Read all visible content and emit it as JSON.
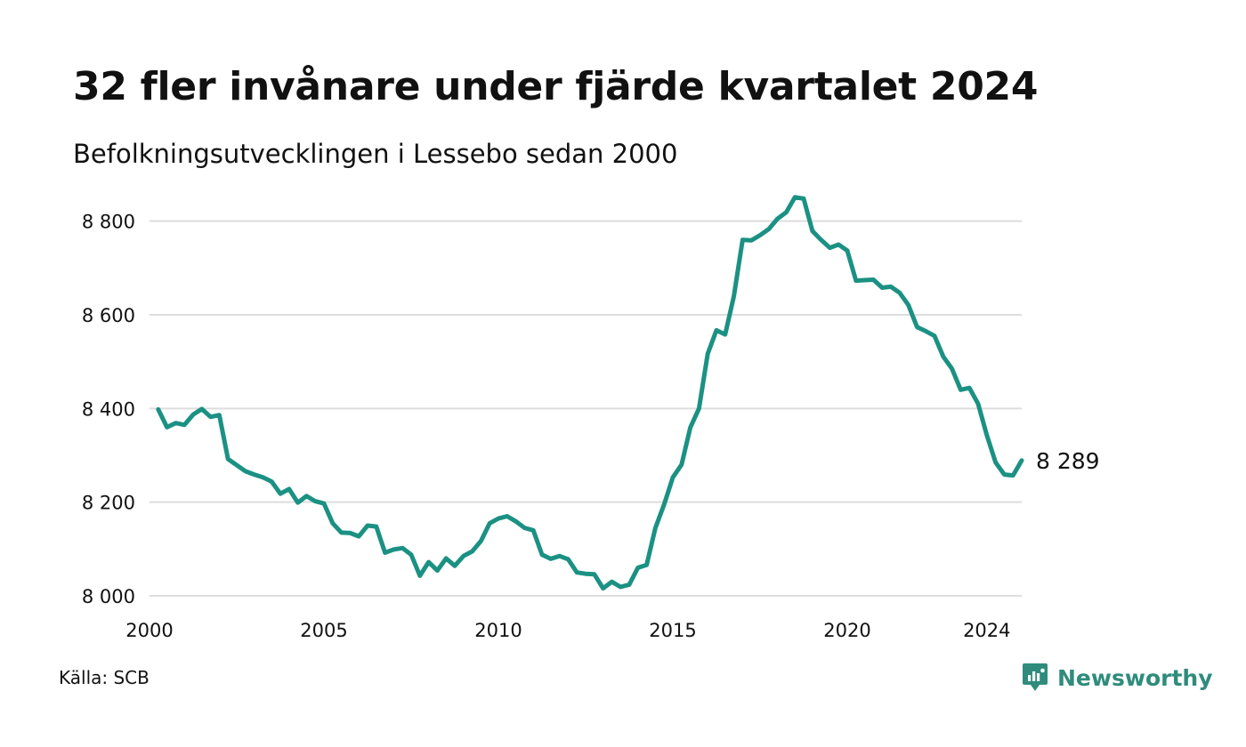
{
  "title": "32 fler invånare under fjärde kvartalet 2024",
  "subtitle": "Befolkningsutvecklingen i Lessebo sedan 2000",
  "source": "Källa: SCB",
  "logo_text": "Newsworthy",
  "colors": {
    "line": "#1b9183",
    "grid": "#dddddd",
    "logo": "#2f8c7d"
  },
  "icons": {
    "logo": "newsworthy-logo-icon"
  },
  "chart_data": {
    "type": "line",
    "title": "32 fler invånare under fjärde kvartalet 2024",
    "subtitle": "Befolkningsutvecklingen i Lessebo sedan 2000",
    "xlabel": "",
    "ylabel": "",
    "xlim": [
      2000,
      2025
    ],
    "ylim": [
      8000,
      8900
    ],
    "x_ticks": [
      2000,
      2005,
      2010,
      2015,
      2020,
      2024
    ],
    "x_tick_labels": [
      "2000",
      "2005",
      "2010",
      "2015",
      "2020",
      "2024"
    ],
    "y_ticks": [
      8000,
      8200,
      8400,
      8600,
      8800
    ],
    "y_tick_labels": [
      "8 000",
      "8 200",
      "8 400",
      "8 600",
      "8 800"
    ],
    "grid": true,
    "end_label": "8 289",
    "series": [
      {
        "x": [
          2000.25,
          2000.5,
          2000.75,
          2001,
          2001.25,
          2001.5,
          2001.75,
          2002,
          2002.25,
          2002.5,
          2002.75,
          2003,
          2003.25,
          2003.5,
          2003.75,
          2004,
          2004.25,
          2004.5,
          2004.75,
          2005,
          2005.25,
          2005.5,
          2005.75,
          2006,
          2006.25,
          2006.5,
          2006.75,
          2007,
          2007.25,
          2007.5,
          2007.75,
          2008,
          2008.25,
          2008.5,
          2008.75,
          2009,
          2009.25,
          2009.5,
          2009.75,
          2010,
          2010.25,
          2010.5,
          2010.75,
          2011,
          2011.25,
          2011.5,
          2011.75,
          2012,
          2012.25,
          2012.5,
          2012.75,
          2013,
          2013.25,
          2013.5,
          2013.75,
          2014,
          2014.25,
          2014.5,
          2014.75,
          2015,
          2015.25,
          2015.5,
          2015.75,
          2016,
          2016.25,
          2016.5,
          2016.75,
          2017,
          2017.25,
          2017.5,
          2017.75,
          2018,
          2018.25,
          2018.5,
          2018.75,
          2019,
          2019.25,
          2019.5,
          2019.75,
          2020,
          2020.25,
          2020.5,
          2020.75,
          2021,
          2021.25,
          2021.5,
          2021.75,
          2022,
          2022.25,
          2022.5,
          2022.75,
          2023,
          2023.25,
          2023.5,
          2023.75,
          2024,
          2024.25,
          2024.5,
          2024.75,
          2025
        ],
        "y": [
          8398,
          8360,
          8369,
          8365,
          8387,
          8399,
          8382,
          8386,
          8292,
          8279,
          8266,
          8259,
          8253,
          8244,
          8218,
          8228,
          8199,
          8213,
          8202,
          8197,
          8155,
          8135,
          8134,
          8127,
          8150,
          8148,
          8092,
          8099,
          8102,
          8088,
          8043,
          8072,
          8054,
          8080,
          8064,
          8085,
          8095,
          8117,
          8155,
          8165,
          8170,
          8159,
          8145,
          8140,
          8088,
          8079,
          8085,
          8078,
          8050,
          8047,
          8046,
          8016,
          8030,
          8019,
          8024,
          8060,
          8066,
          8145,
          8195,
          8253,
          8280,
          8359,
          8400,
          8517,
          8567,
          8558,
          8640,
          8760,
          8759,
          8770,
          8783,
          8805,
          8819,
          8851,
          8848,
          8779,
          8760,
          8743,
          8750,
          8737,
          8673,
          8674,
          8675,
          8658,
          8660,
          8647,
          8621,
          8574,
          8565,
          8555,
          8511,
          8485,
          8440,
          8444,
          8410,
          8343,
          8285,
          8259,
          8257,
          8289
        ]
      }
    ]
  }
}
